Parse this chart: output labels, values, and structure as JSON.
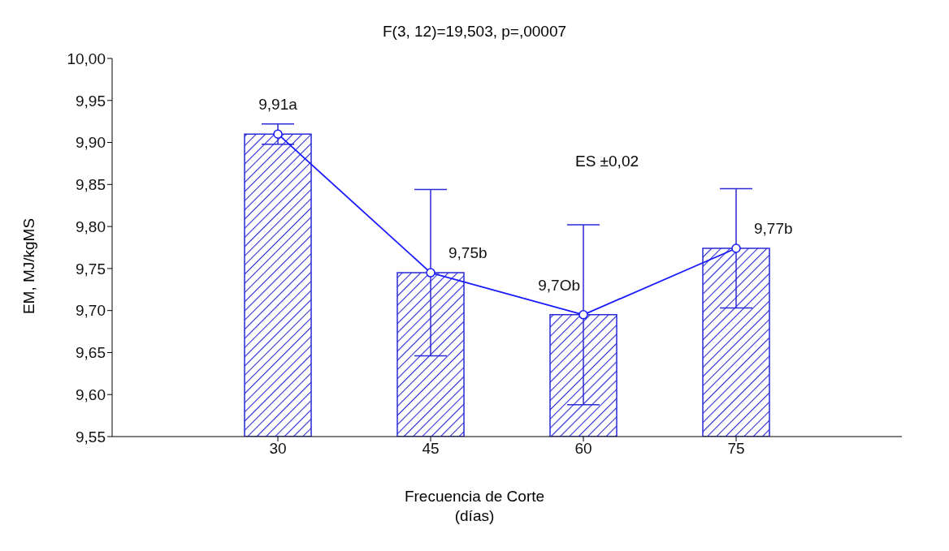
{
  "chart_data": {
    "type": "bar",
    "title": "F(3, 12)=19,503, p=,00007",
    "xlabel": "Frecuencia de Corte\n(días)",
    "ylabel": "EM, MJ/kgMS",
    "annotations": [
      "ES ±0,02"
    ],
    "categories": [
      "30",
      "45",
      "60",
      "75"
    ],
    "series": [
      {
        "color": "#2a2ad6",
        "values": [
          9.91,
          9.745,
          9.695,
          9.774
        ],
        "errors": [
          0.012,
          0.099,
          0.107,
          0.071
        ]
      },
      {
        "type": "line",
        "color": "#1a1aff",
        "values": [
          9.91,
          9.745,
          9.695,
          9.774
        ],
        "marker": "circle",
        "value_labels": [
          "9,91a",
          "9,75b",
          "9,7Ob",
          "9,77b"
        ]
      }
    ],
    "ylim": [
      9.55,
      10.0
    ],
    "yticks": [
      {
        "value": 9.55,
        "label": "9,55"
      },
      {
        "value": 9.6,
        "label": "9,60"
      },
      {
        "value": 9.65,
        "label": "9,65"
      },
      {
        "value": 9.7,
        "label": "9,70"
      },
      {
        "value": 9.75,
        "label": "9,75"
      },
      {
        "value": 9.8,
        "label": "9,80"
      },
      {
        "value": 9.85,
        "label": "9,85"
      },
      {
        "value": 9.9,
        "label": "9,90"
      },
      {
        "value": 9.95,
        "label": "9,95"
      },
      {
        "value": 10.0,
        "label": "10,00"
      }
    ],
    "grid": false,
    "legend": false
  }
}
